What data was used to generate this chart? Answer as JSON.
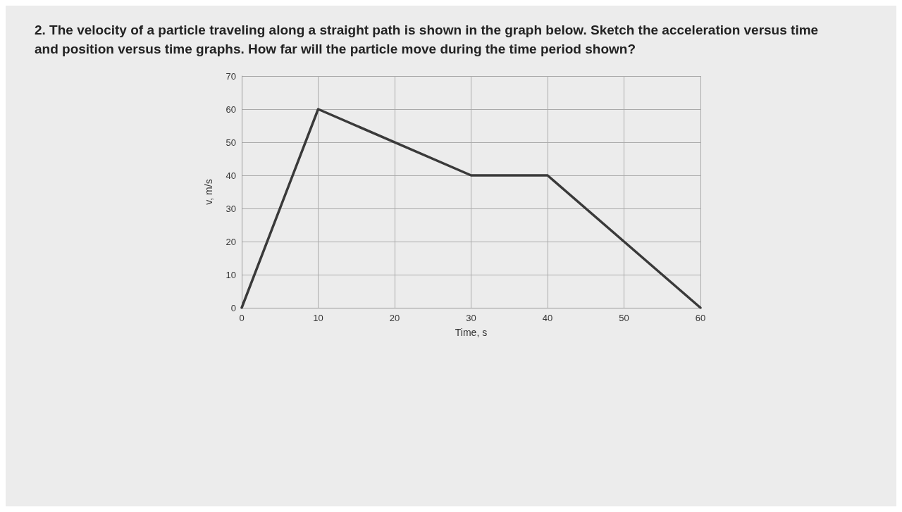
{
  "chart_data": {
    "type": "line",
    "title": "2. The velocity of a particle traveling along a straight path is shown in the graph below. Sketch the acceleration versus time and position versus time graphs. How far will the particle move during the time period shown?",
    "xlabel": "Time, s",
    "ylabel": "v, m/s",
    "x": [
      0,
      10,
      30,
      40,
      60
    ],
    "series": [
      {
        "color": "#3a3a3a",
        "values": [
          0,
          60,
          40,
          40,
          0
        ]
      }
    ],
    "xlim": [
      0,
      60
    ],
    "xticks": [
      0,
      10,
      20,
      30,
      40,
      50,
      60
    ],
    "ylim": [
      0,
      70
    ],
    "yticks": [
      0,
      10,
      20,
      30,
      40,
      50,
      60,
      70
    ],
    "grid": true,
    "marker": "none",
    "line_style": "solid"
  }
}
